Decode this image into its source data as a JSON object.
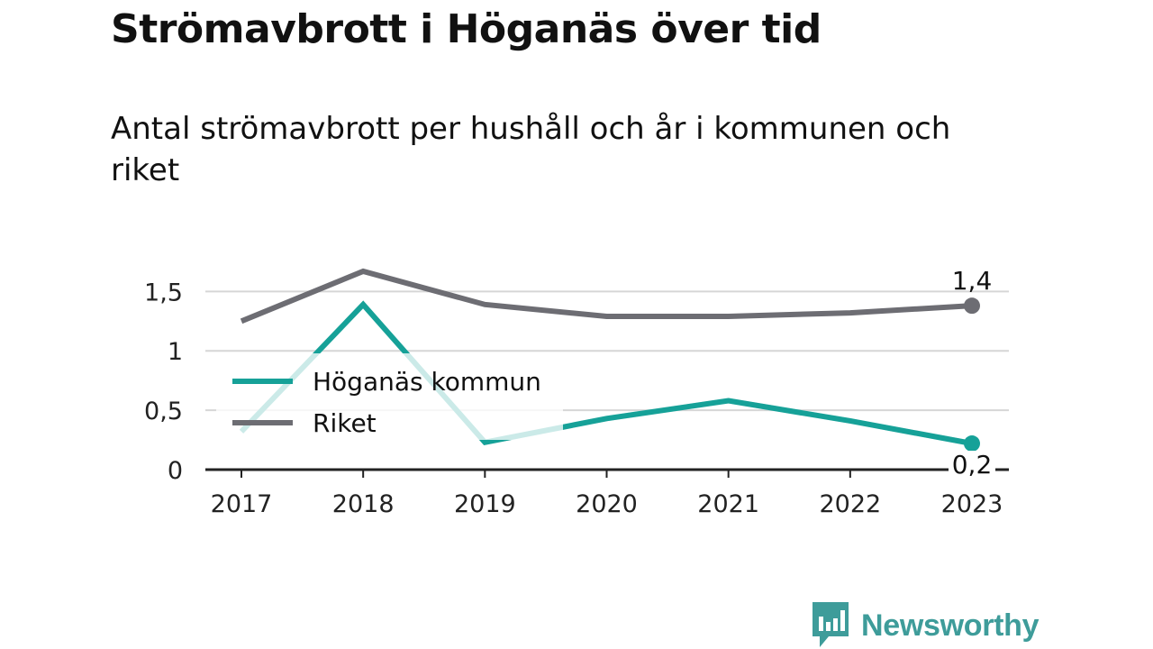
{
  "header": {
    "title": "Strömavbrott i Höganäs över tid",
    "subtitle": "Antal strömavbrott per hushåll och år i kommunen och riket"
  },
  "brand": {
    "name": "Newsworthy",
    "icon": "newsworthy-logo-icon",
    "color": "#3e9c9a"
  },
  "chart_data": {
    "type": "line",
    "title": "Strömavbrott i Höganäs över tid",
    "subtitle": "Antal strömavbrott per hushåll och år i kommunen och riket",
    "xlabel": "",
    "ylabel": "",
    "categories": [
      "2017",
      "2018",
      "2019",
      "2020",
      "2021",
      "2022",
      "2023"
    ],
    "ylim": [
      0,
      1.7
    ],
    "yticks": [
      {
        "value": 0,
        "label": "0"
      },
      {
        "value": 0.5,
        "label": "0,5"
      },
      {
        "value": 1,
        "label": "1"
      },
      {
        "value": 1.5,
        "label": "1,5"
      }
    ],
    "grid": true,
    "legend": "left, inside plot",
    "series": [
      {
        "name": "Höganäs kommun",
        "color": "#16a198",
        "faded_color": "#d0ece9",
        "values": [
          0.32,
          1.39,
          0.23,
          0.43,
          0.58,
          0.41,
          0.22
        ],
        "end_label": "0,2"
      },
      {
        "name": "Riket",
        "color": "#6d6d73",
        "values": [
          1.25,
          1.67,
          1.39,
          1.29,
          1.29,
          1.32,
          1.38
        ],
        "end_label": "1,4"
      }
    ]
  }
}
